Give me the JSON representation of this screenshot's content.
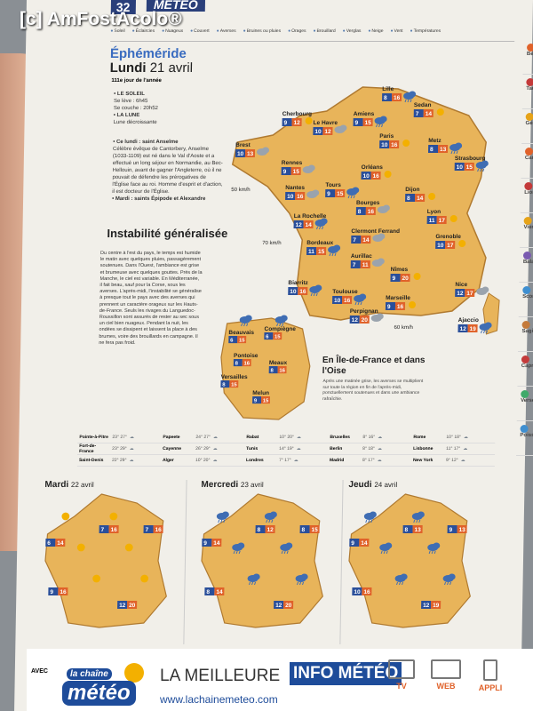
{
  "watermark": "[c] AmFostAcolo®",
  "header": {
    "page_number": "32",
    "section": "MÉTÉO",
    "legend": [
      "Soleil",
      "Éclaircies",
      "Nuageux",
      "Couvert",
      "Averses",
      "Bruines ou pluies",
      "Orages",
      "Brouillard",
      "Verglas",
      "Neige",
      "Vent",
      "Températures"
    ]
  },
  "ephemeride": {
    "title": "Éphéméride",
    "day": "Lundi",
    "date": "21 avril",
    "day_of_year": "111e jour de l'année",
    "sun_heading": "• LE SOLEIL",
    "sunrise": "Se lève : 6h45",
    "sunset": "Se couche : 20h52",
    "moon_heading": "• LA LUNE",
    "moon": "Lune décroissante",
    "saint_heading": "• Ce lundi : saint Anselme",
    "saint_text": "Célèbre évêque de Cantorbery, Anselme (1033-1109) est né dans le Val d'Aoste et a effectué un long séjour en Normandie, au Bec-Hellouin, avant de gagner l'Angleterre, où il ne pouvait de défendre les prérogatives de l'Église face au roi. Homme d'esprit et d'action, il est docteur de l'Église.",
    "tomorrow": "• Mardi : saints Épipode et Alexandre"
  },
  "article": {
    "title": "Instabilité généralisée",
    "body": "Du centre à l'est du pays, le temps est humide le matin avec quelques pluies, passagèrement soutenues. Dans l'Ouest, l'ambiance est grise et brumeuse avec quelques gouttes. Près de la Manche, le ciel est variable. En Méditerranée, il fait beau, sauf pour la Corse, sous les averses. L'après-midi, l'instabilité se généralise à presque tout le pays avec des averses qui prennent un caractère orageux sur les Hauts-de-France. Seuls les rivages du Languedoc-Roussillon sont assurés de rester au sec sous un ciel bien nuageux. Pendant la nuit, les ondées se dissipent et laissent la place à des brumes, voire des brouillards en campagne. Il ne fera pas froid."
  },
  "france_map": {
    "wind_labels": [
      "50 km/h",
      "70 km/h",
      "60 km/h"
    ],
    "cities": [
      {
        "name": "Lille",
        "min": "8",
        "max": "16"
      },
      {
        "name": "Cherbourg",
        "min": "9",
        "max": "12"
      },
      {
        "name": "Le Havre",
        "min": "10",
        "max": "12"
      },
      {
        "name": "Amiens",
        "min": "9",
        "max": "15"
      },
      {
        "name": "Sedan",
        "min": "7",
        "max": "14"
      },
      {
        "name": "Brest",
        "min": "10",
        "max": "13"
      },
      {
        "name": "Metz",
        "min": "8",
        "max": "13"
      },
      {
        "name": "Paris",
        "min": "10",
        "max": "16"
      },
      {
        "name": "Rennes",
        "min": "9",
        "max": "15"
      },
      {
        "name": "Strasbourg",
        "min": "10",
        "max": "15"
      },
      {
        "name": "Orléans",
        "min": "10",
        "max": "16"
      },
      {
        "name": "Nantes",
        "min": "10",
        "max": "16"
      },
      {
        "name": "Tours",
        "min": "9",
        "max": "15"
      },
      {
        "name": "Dijon",
        "min": "8",
        "max": "14"
      },
      {
        "name": "Bourges",
        "min": "8",
        "max": "16"
      },
      {
        "name": "La Rochelle",
        "min": "12",
        "max": "14"
      },
      {
        "name": "Lyon",
        "min": "11",
        "max": "17"
      },
      {
        "name": "Clermont Ferrand",
        "min": "7",
        "max": "14"
      },
      {
        "name": "Bordeaux",
        "min": "11",
        "max": "15"
      },
      {
        "name": "Grenoble",
        "min": "10",
        "max": "17"
      },
      {
        "name": "Aurillac",
        "min": "7",
        "max": "11"
      },
      {
        "name": "Biarritz",
        "min": "10",
        "max": "16"
      },
      {
        "name": "Nîmes",
        "min": "9",
        "max": "20"
      },
      {
        "name": "Nice",
        "min": "12",
        "max": "17"
      },
      {
        "name": "Toulouse",
        "min": "10",
        "max": "16"
      },
      {
        "name": "Marseille",
        "min": "9",
        "max": "16"
      },
      {
        "name": "Perpignan",
        "min": "12",
        "max": "20"
      },
      {
        "name": "Ajaccio",
        "min": "12",
        "max": "19"
      }
    ]
  },
  "idf": {
    "title": "En Île-de-France et dans l'Oise",
    "text": "Après une matinée grise, les averses se multiplient sur toute la région en fin de l'après-midi, ponctuellement soutenues et dans une ambiance rafraîchie.",
    "cities": [
      {
        "name": "Beauvais",
        "min": "6",
        "max": "15"
      },
      {
        "name": "Compiègne",
        "min": "6",
        "max": "15"
      },
      {
        "name": "Pontoise",
        "min": "8",
        "max": "16"
      },
      {
        "name": "Meaux",
        "min": "8",
        "max": "16"
      },
      {
        "name": "Versailles",
        "min": "8",
        "max": "15"
      },
      {
        "name": "Melun",
        "min": "9",
        "max": "15"
      }
    ]
  },
  "world": [
    [
      {
        "city": "Pointe-à-Pitre",
        "temp": "23° 27°"
      },
      {
        "city": "Papeete",
        "temp": "24° 27°"
      },
      {
        "city": "Rabat",
        "temp": "10° 20°"
      },
      {
        "city": "Bruxelles",
        "temp": "8° 16°"
      },
      {
        "city": "Rome",
        "temp": "10° 18°"
      }
    ],
    [
      {
        "city": "Fort-de-France",
        "temp": "23° 29°"
      },
      {
        "city": "Cayenne",
        "temp": "26° 29°"
      },
      {
        "city": "Tunis",
        "temp": "14° 19°"
      },
      {
        "city": "Berlin",
        "temp": "8° 18°"
      },
      {
        "city": "Lisbonne",
        "temp": "11° 17°"
      }
    ],
    [
      {
        "city": "Saint-Denis",
        "temp": "22° 29°"
      },
      {
        "city": "Alger",
        "temp": "10° 20°"
      },
      {
        "city": "Londres",
        "temp": "7° 17°"
      },
      {
        "city": "Madrid",
        "temp": "8° 17°"
      },
      {
        "city": "New York",
        "temp": "9° 12°"
      }
    ]
  ],
  "forecasts": [
    {
      "day": "Mardi",
      "date": "22 avril",
      "temps": [
        [
          "6",
          "14"
        ],
        [
          "7",
          "16"
        ],
        [
          "7",
          "16"
        ],
        [
          "9",
          "16"
        ],
        [
          "12",
          "20"
        ]
      ]
    },
    {
      "day": "Mercredi",
      "date": "23 avril",
      "temps": [
        [
          "9",
          "14"
        ],
        [
          "8",
          "12"
        ],
        [
          "8",
          "15"
        ],
        [
          "8",
          "14"
        ],
        [
          "12",
          "20"
        ]
      ]
    },
    {
      "day": "Jeudi",
      "date": "24 avril",
      "temps": [
        [
          "9",
          "14"
        ],
        [
          "8",
          "13"
        ],
        [
          "9",
          "13"
        ],
        [
          "10",
          "16"
        ],
        [
          "12",
          "19"
        ]
      ]
    }
  ],
  "sidebar": [
    {
      "sign": "Bélier",
      "color": "#e0622a"
    },
    {
      "sign": "Taureau",
      "color": "#c43a3a"
    },
    {
      "sign": "Gémeaux",
      "color": "#e6a318"
    },
    {
      "sign": "Cancer",
      "color": "#e0622a"
    },
    {
      "sign": "Lion",
      "color": "#c43a3a"
    },
    {
      "sign": "Vierge",
      "color": "#e6a318"
    },
    {
      "sign": "Balance",
      "color": "#7a5ab0"
    },
    {
      "sign": "Scorpion",
      "color": "#3f8fd0"
    },
    {
      "sign": "Sagittaire",
      "color": "#c47a3a"
    },
    {
      "sign": "Capricorne",
      "color": "#c43a3a"
    },
    {
      "sign": "Verseau",
      "color": "#3faa6a"
    },
    {
      "sign": "Poissons",
      "color": "#3f8fd0"
    }
  ],
  "footer": {
    "avec": "AVEC",
    "logo_top": "la chaîne",
    "logo_main": "météo",
    "tagline_1": "LA MEILLEURE",
    "tagline_2": "INFO MÉTÉO",
    "url": "www.lachainemeteo.com",
    "devices": [
      "TV",
      "WEB",
      "APPLI"
    ]
  },
  "colors": {
    "map_land": "#e8b45a",
    "min_badge": "#2a4f9a",
    "max_badge": "#e0622a",
    "rain_cloud": "#3f6db3"
  }
}
